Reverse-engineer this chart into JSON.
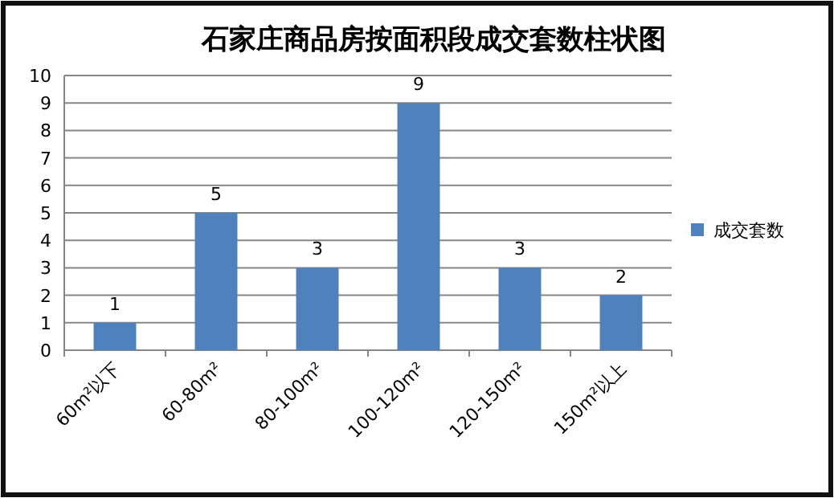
{
  "chart_data": {
    "type": "bar",
    "title": "石家庄商品房按面积段成交套数柱状图",
    "categories": [
      "60m²以下",
      "60-80m²",
      "80-100m²",
      "100-120m²",
      "120-150m²",
      "150m²以上"
    ],
    "series": [
      {
        "name": "成交套数",
        "color": "#4f81bd",
        "values": [
          1,
          5,
          3,
          9,
          3,
          2
        ]
      }
    ],
    "ylim": [
      0,
      10
    ],
    "yticks": [
      0,
      1,
      2,
      3,
      4,
      5,
      6,
      7,
      8,
      9,
      10
    ],
    "grid": "y",
    "legend": "right",
    "data_labels": true
  }
}
